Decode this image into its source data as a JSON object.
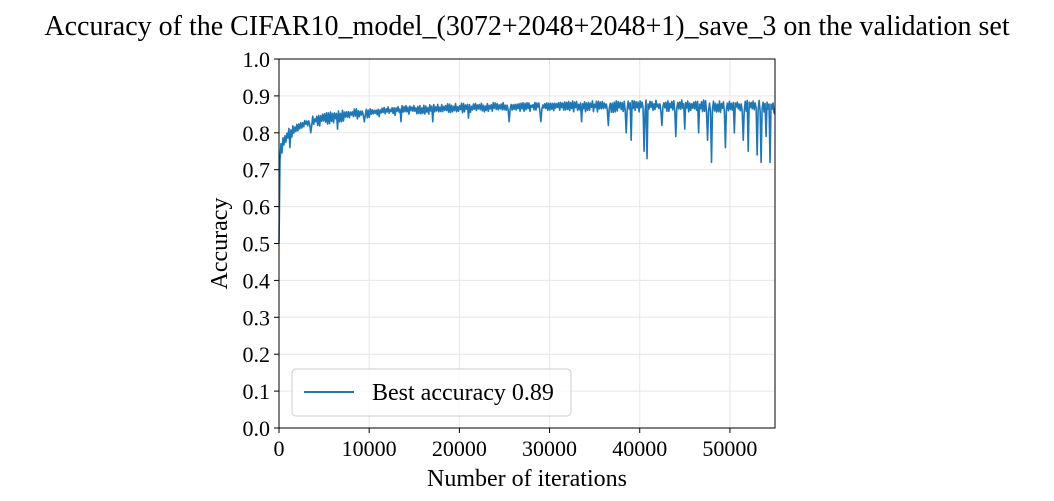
{
  "chart_data": {
    "type": "line",
    "title": "Accuracy of the CIFAR10_model_(3072+2048+2048+1)_save_3 on the validation set",
    "xlabel": "Number of iterations",
    "ylabel": "Accuracy",
    "xlim": [
      0,
      55000
    ],
    "ylim": [
      0.0,
      1.0
    ],
    "xticks": [
      0,
      10000,
      20000,
      30000,
      40000,
      50000
    ],
    "yticks": [
      0.0,
      0.1,
      0.2,
      0.3,
      0.4,
      0.5,
      0.6,
      0.7,
      0.8,
      0.9,
      1.0
    ],
    "xtick_labels": [
      "0",
      "10000",
      "20000",
      "30000",
      "40000",
      "50000"
    ],
    "ytick_labels": [
      "0.0",
      "0.1",
      "0.2",
      "0.3",
      "0.4",
      "0.5",
      "0.6",
      "0.7",
      "0.8",
      "0.9",
      "1.0"
    ],
    "grid": true,
    "legend_position": "lower-left",
    "series": [
      {
        "name": "Best accuracy 0.89",
        "color": "#1f77b4",
        "x": [
          0,
          100,
          200,
          400,
          700,
          1000,
          1500,
          2000,
          3000,
          4000,
          5000,
          6000,
          7000,
          8000,
          9000,
          10000,
          12000,
          14000,
          16000,
          18000,
          20000,
          22000,
          24000,
          26000,
          28000,
          30000,
          32000,
          34000,
          36000,
          38000,
          40000,
          42000,
          44000,
          46000,
          48000,
          50000,
          52000,
          54000,
          55000
        ],
        "upper": [
          0.5,
          0.72,
          0.77,
          0.79,
          0.8,
          0.81,
          0.82,
          0.83,
          0.84,
          0.85,
          0.855,
          0.86,
          0.862,
          0.865,
          0.868,
          0.87,
          0.872,
          0.874,
          0.876,
          0.878,
          0.88,
          0.881,
          0.882,
          0.883,
          0.884,
          0.885,
          0.886,
          0.887,
          0.888,
          0.888,
          0.889,
          0.889,
          0.889,
          0.889,
          0.889,
          0.889,
          0.889,
          0.889,
          0.889
        ],
        "lower": [
          0.5,
          0.6,
          0.7,
          0.75,
          0.77,
          0.78,
          0.79,
          0.8,
          0.81,
          0.815,
          0.82,
          0.825,
          0.83,
          0.835,
          0.838,
          0.84,
          0.845,
          0.848,
          0.85,
          0.852,
          0.853,
          0.855,
          0.856,
          0.857,
          0.858,
          0.858,
          0.857,
          0.856,
          0.855,
          0.855,
          0.855,
          0.855,
          0.855,
          0.855,
          0.855,
          0.855,
          0.855,
          0.855,
          0.855
        ],
        "dips": [
          [
            1200,
            0.76
          ],
          [
            3500,
            0.8
          ],
          [
            6500,
            0.81
          ],
          [
            9500,
            0.83
          ],
          [
            13500,
            0.83
          ],
          [
            17000,
            0.83
          ],
          [
            21000,
            0.84
          ],
          [
            25500,
            0.83
          ],
          [
            29000,
            0.83
          ],
          [
            33500,
            0.83
          ],
          [
            36500,
            0.82
          ],
          [
            38500,
            0.8
          ],
          [
            39000,
            0.78
          ],
          [
            40500,
            0.75
          ],
          [
            40800,
            0.73
          ],
          [
            42500,
            0.82
          ],
          [
            44000,
            0.79
          ],
          [
            45000,
            0.81
          ],
          [
            46500,
            0.8
          ],
          [
            47500,
            0.78
          ],
          [
            48000,
            0.72
          ],
          [
            49500,
            0.76
          ],
          [
            50500,
            0.8
          ],
          [
            51500,
            0.78
          ],
          [
            52000,
            0.75
          ],
          [
            53000,
            0.74
          ],
          [
            53500,
            0.72
          ],
          [
            54000,
            0.79
          ],
          [
            54500,
            0.72
          ],
          [
            55000,
            0.85
          ]
        ]
      }
    ]
  }
}
